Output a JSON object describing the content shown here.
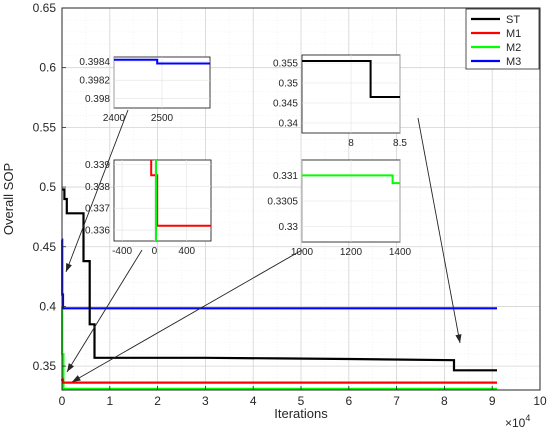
{
  "chart_data": {
    "type": "line",
    "xlabel": "Iterations",
    "ylabel": "Overall SOP",
    "x_multiplier_label": "×10",
    "x_multiplier_exp": "4",
    "xlim": [
      0,
      10
    ],
    "ylim": [
      0.33,
      0.65
    ],
    "xticks": [
      "0",
      "1",
      "2",
      "3",
      "4",
      "5",
      "6",
      "7",
      "8",
      "9",
      "10"
    ],
    "yticks": [
      "0.35",
      "0.4",
      "0.45",
      "0.5",
      "0.55",
      "0.6",
      "0.65"
    ],
    "grid": true,
    "legend_position": "top-right",
    "series": [
      {
        "name": "ST",
        "color": "#000000",
        "x": [
          0,
          0.05,
          0.05,
          0.1,
          0.1,
          0.45,
          0.45,
          0.58,
          0.58,
          0.68,
          0.68,
          3.0,
          4.5,
          6.0,
          8.2,
          8.2,
          9.1
        ],
        "y": [
          0.498,
          0.498,
          0.49,
          0.49,
          0.478,
          0.478,
          0.438,
          0.438,
          0.385,
          0.385,
          0.357,
          0.357,
          0.3565,
          0.356,
          0.355,
          0.3465,
          0.3465
        ]
      },
      {
        "name": "M1",
        "color": "#ff0000",
        "x": [
          0,
          0.005,
          0.005,
          0.02,
          0.02,
          9.1
        ],
        "y": [
          0.3392,
          0.3392,
          0.3385,
          0.3385,
          0.3362,
          0.3362
        ]
      },
      {
        "name": "M2",
        "color": "#00ff00",
        "x": [
          0,
          0.005,
          0.005,
          0.03,
          0.03,
          9.1
        ],
        "y": [
          0.4,
          0.4,
          0.36,
          0.36,
          0.331,
          0.331
        ]
      },
      {
        "name": "M3",
        "color": "#0000ff",
        "x": [
          0,
          0.005,
          0.005,
          0.02,
          0.02,
          9.1
        ],
        "y": [
          0.456,
          0.456,
          0.41,
          0.41,
          0.3984,
          0.3984
        ]
      }
    ],
    "insets": [
      {
        "id": "inset-m3",
        "series": "M3",
        "xlim": [
          2400,
          2600
        ],
        "ylim": [
          0.3979,
          0.39845
        ],
        "xticks": [
          "2400",
          "2500"
        ],
        "yticks": [
          "0.398",
          "0.3982",
          "0.3984"
        ],
        "x": [
          2400,
          2490,
          2490,
          2600
        ],
        "y": [
          0.39842,
          0.39842,
          0.39838,
          0.39838
        ]
      },
      {
        "id": "inset-st",
        "series": "ST",
        "xlim": [
          7.5,
          8.5
        ],
        "ylim": [
          0.3375,
          0.357
        ],
        "xticks": [
          "8",
          "8.5"
        ],
        "yticks": [
          "0.34",
          "0.345",
          "0.35",
          "0.355"
        ],
        "x": [
          7.5,
          8.2,
          8.2,
          8.5
        ],
        "y": [
          0.3555,
          0.3555,
          0.3465,
          0.3465
        ]
      },
      {
        "id": "inset-m1m2",
        "series": "M1, M2",
        "xlim": [
          -500,
          700
        ],
        "ylim": [
          0.3355,
          0.3392
        ],
        "xticks": [
          "-400",
          "0",
          "400"
        ],
        "yticks": [
          "0.336",
          "0.337",
          "0.338",
          "0.339"
        ],
        "x_m1": [
          -40,
          -40,
          35,
          35,
          700
        ],
        "y_m1": [
          0.3392,
          0.3385,
          0.3385,
          0.3362,
          0.3362
        ],
        "x_m2": [
          20,
          20,
          40
        ],
        "y_m2": [
          0.3392,
          0.3355,
          0.3355
        ]
      },
      {
        "id": "inset-m2",
        "series": "M2",
        "xlim": [
          1000,
          1400
        ],
        "ylim": [
          0.3297,
          0.3313
        ],
        "xticks": [
          "1000",
          "1200",
          "1400"
        ],
        "yticks": [
          "0.33",
          "0.3305",
          "0.331"
        ],
        "x": [
          1000,
          1370,
          1370,
          1400
        ],
        "y": [
          0.331,
          0.331,
          0.33085,
          0.33085
        ]
      }
    ]
  }
}
